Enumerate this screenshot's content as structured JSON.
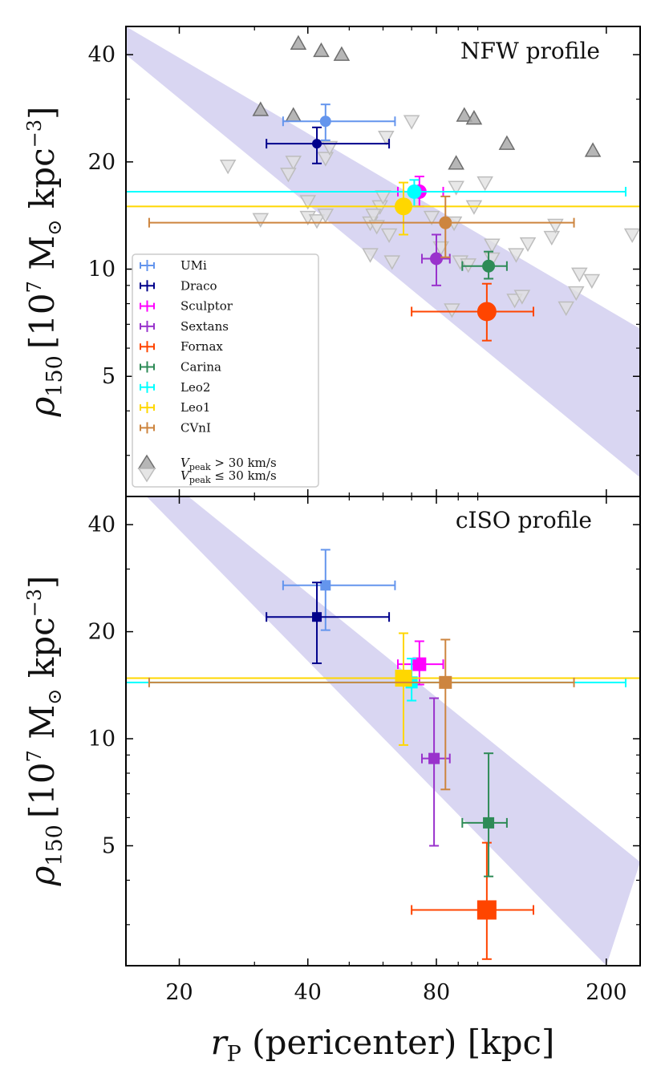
{
  "chart_data": [
    {
      "type": "scatter",
      "panel_label": "NFW profile",
      "ylabel": "ρ150 [10^7 M⊙ kpc^-3]",
      "ylabel_parts": {
        "symbol": "ρ",
        "sub": "150",
        "open": "[10",
        "exp": "7",
        "mid": " M",
        "sun": "⊙",
        "unit": " kpc",
        "exp2": "−3",
        "close": "]"
      },
      "xscale": "log",
      "yscale": "log",
      "xlim": [
        15,
        240
      ],
      "ylim": [
        2.3,
        48
      ],
      "yticks": [
        5,
        10,
        20,
        40
      ],
      "ytick_labels": [
        "5",
        "10",
        "20",
        "40"
      ],
      "band": {
        "color": "#d9d6f2",
        "upper": [
          [
            15,
            48
          ],
          [
            240,
            6.8
          ]
        ],
        "lower": [
          [
            15,
            40
          ],
          [
            240,
            2.6
          ]
        ]
      },
      "galaxies": [
        {
          "name": "UMi",
          "color": "#6495ed",
          "x": 44,
          "y": 26,
          "xerr": [
            35,
            64
          ],
          "yerr": [
            23,
            29
          ],
          "size": 7
        },
        {
          "name": "Draco",
          "color": "#00008b",
          "x": 42,
          "y": 22.5,
          "xerr": [
            32,
            62
          ],
          "yerr": [
            19.8,
            25
          ],
          "size": 6
        },
        {
          "name": "Sculptor",
          "color": "#ff00ff",
          "x": 73,
          "y": 16.5,
          "xerr": [
            65,
            83
          ],
          "yerr": [
            15,
            18.2
          ],
          "size": 9
        },
        {
          "name": "Sextans",
          "color": "#9932cc",
          "x": 80,
          "y": 10.7,
          "xerr": [
            74,
            86
          ],
          "yerr": [
            9,
            12.5
          ],
          "size": 8
        },
        {
          "name": "Fornax",
          "color": "#ff4500",
          "x": 105,
          "y": 7.6,
          "xerr": [
            70,
            135
          ],
          "yerr": [
            6.3,
            9.1
          ],
          "size": 12
        },
        {
          "name": "Carina",
          "color": "#2e8b57",
          "x": 106,
          "y": 10.2,
          "xerr": [
            92,
            117
          ],
          "yerr": [
            9.4,
            11.2
          ],
          "size": 8
        },
        {
          "name": "Leo2",
          "color": "#00ffff",
          "x": 71,
          "y": 16.5,
          "xerr": [
            15,
            222
          ],
          "yerr": [
            15,
            17.8
          ],
          "size": 9
        },
        {
          "name": "Leo1",
          "color": "#ffd700",
          "x": 67,
          "y": 15,
          "xerr": [
            14,
            240
          ],
          "yerr": [
            12.5,
            17.5
          ],
          "size": 11
        },
        {
          "name": "CVnI",
          "color": "#cd853f",
          "x": 84,
          "y": 13.5,
          "xerr": [
            17,
            168
          ],
          "yerr": [
            10.8,
            16
          ],
          "size": 8
        }
      ],
      "vpeak_high": [
        [
          38,
          43
        ],
        [
          43,
          41
        ],
        [
          48,
          40
        ],
        [
          31,
          28
        ],
        [
          37,
          27
        ],
        [
          93,
          27
        ],
        [
          98,
          26.5
        ],
        [
          117,
          22.5
        ],
        [
          89,
          19.8
        ],
        [
          186,
          21.5
        ]
      ],
      "vpeak_low": [
        [
          26,
          19.5
        ],
        [
          37,
          20
        ],
        [
          36,
          18.5
        ],
        [
          44,
          20.5
        ],
        [
          45,
          22
        ],
        [
          70,
          26
        ],
        [
          61,
          23.5
        ],
        [
          78,
          14
        ],
        [
          59,
          15
        ],
        [
          56,
          13.5
        ],
        [
          57,
          14.2
        ],
        [
          40,
          15.5
        ],
        [
          40,
          14
        ],
        [
          31,
          13.8
        ],
        [
          42,
          13.7
        ],
        [
          44,
          14.2
        ],
        [
          60,
          16
        ],
        [
          88,
          13.5
        ],
        [
          89,
          17
        ],
        [
          104,
          17.5
        ],
        [
          98,
          15
        ],
        [
          58,
          13.2
        ],
        [
          62,
          12.5
        ],
        [
          56,
          11
        ],
        [
          63,
          10.5
        ],
        [
          82,
          11.5
        ],
        [
          91,
          10.5
        ],
        [
          95,
          10.3
        ],
        [
          108,
          10.7
        ],
        [
          108,
          11.7
        ],
        [
          123,
          11
        ],
        [
          131,
          11.8
        ],
        [
          149,
          12.3
        ],
        [
          152,
          13.3
        ],
        [
          173,
          9.7
        ],
        [
          170,
          8.6
        ],
        [
          185,
          9.3
        ],
        [
          122,
          8.2
        ],
        [
          127,
          8.4
        ],
        [
          161,
          7.8
        ],
        [
          230,
          12.5
        ],
        [
          87,
          7.7
        ]
      ]
    },
    {
      "type": "scatter",
      "panel_label": "cISO profile",
      "ylabel": "ρ150 [10^7 M⊙ kpc^-3]",
      "ylabel_parts": {
        "symbol": "ρ",
        "sub": "150",
        "open": "[10",
        "exp": "7",
        "mid": " M",
        "sun": "⊙",
        "unit": " kpc",
        "exp2": "−3",
        "close": "]"
      },
      "xscale": "log",
      "yscale": "log",
      "xlim": [
        15,
        240
      ],
      "ylim": [
        2.3,
        48
      ],
      "yticks": [
        5,
        10,
        20,
        40
      ],
      "ytick_labels": [
        "5",
        "10",
        "20",
        "40"
      ],
      "xticks": [
        20,
        40,
        80,
        200
      ],
      "xtick_labels": [
        "20",
        "40",
        "80",
        "200"
      ],
      "xlabel": "rP (pericenter) [kpc]",
      "xlabel_parts": {
        "symbol": "r",
        "sub": "P",
        "rest": " (pericenter) [kpc]"
      },
      "band": {
        "color": "#d9d6f2",
        "upper": [
          [
            21,
            48
          ],
          [
            240,
            4.5
          ]
        ],
        "lower": [
          [
            15,
            55
          ],
          [
            200,
            2.3
          ]
        ]
      },
      "galaxies": [
        {
          "name": "UMi",
          "color": "#6495ed",
          "x": 44,
          "y": 27,
          "xerr": [
            35,
            64
          ],
          "yerr": [
            20.2,
            34
          ],
          "size": 13
        },
        {
          "name": "Draco",
          "color": "#00008b",
          "x": 42,
          "y": 22,
          "xerr": [
            32,
            62
          ],
          "yerr": [
            16.3,
            27.5
          ],
          "size": 12
        },
        {
          "name": "Sculptor",
          "color": "#ff00ff",
          "x": 73,
          "y": 16.2,
          "xerr": [
            65,
            83
          ],
          "yerr": [
            14.2,
            18.8
          ],
          "size": 17
        },
        {
          "name": "Sextans",
          "color": "#9932cc",
          "x": 79,
          "y": 8.8,
          "xerr": [
            74,
            86
          ],
          "yerr": [
            5,
            13
          ],
          "size": 14
        },
        {
          "name": "Fornax",
          "color": "#ff4500",
          "x": 105,
          "y": 3.3,
          "xerr": [
            70,
            135
          ],
          "yerr": [
            2.4,
            5.1
          ],
          "size": 24
        },
        {
          "name": "Carina",
          "color": "#2e8b57",
          "x": 106,
          "y": 5.8,
          "xerr": [
            92,
            117
          ],
          "yerr": [
            4.1,
            9.1
          ],
          "size": 14
        },
        {
          "name": "Leo2",
          "color": "#00ffff",
          "x": 70,
          "y": 14.4,
          "xerr": [
            15,
            222
          ],
          "yerr": [
            12.8,
            16.8
          ],
          "size": 15
        },
        {
          "name": "Leo1",
          "color": "#ffd700",
          "x": 67,
          "y": 14.8,
          "xerr": [
            14,
            240
          ],
          "yerr": [
            9.6,
            19.8
          ],
          "size": 21
        },
        {
          "name": "CVnI",
          "color": "#cd853f",
          "x": 84,
          "y": 14.4,
          "xerr": [
            17,
            168
          ],
          "yerr": [
            7.2,
            19
          ],
          "size": 16
        }
      ]
    }
  ],
  "legend": {
    "items": [
      {
        "label": "UMi",
        "color": "#6495ed"
      },
      {
        "label": "Draco",
        "color": "#00008b"
      },
      {
        "label": "Sculptor",
        "color": "#ff00ff"
      },
      {
        "label": "Sextans",
        "color": "#9932cc"
      },
      {
        "label": "Fornax",
        "color": "#ff4500"
      },
      {
        "label": "Carina",
        "color": "#2e8b57"
      },
      {
        "label": "Leo2",
        "color": "#00ffff"
      },
      {
        "label": "Leo1",
        "color": "#ffd700"
      },
      {
        "label": "CVnI",
        "color": "#cd853f"
      }
    ],
    "vpeak_high_label": {
      "symbol": "V",
      "sub": "peak",
      "rest": " > 30 km/s"
    },
    "vpeak_low_label": {
      "symbol": "V",
      "sub": "peak",
      "rest": " ≤ 30 km/s"
    }
  }
}
